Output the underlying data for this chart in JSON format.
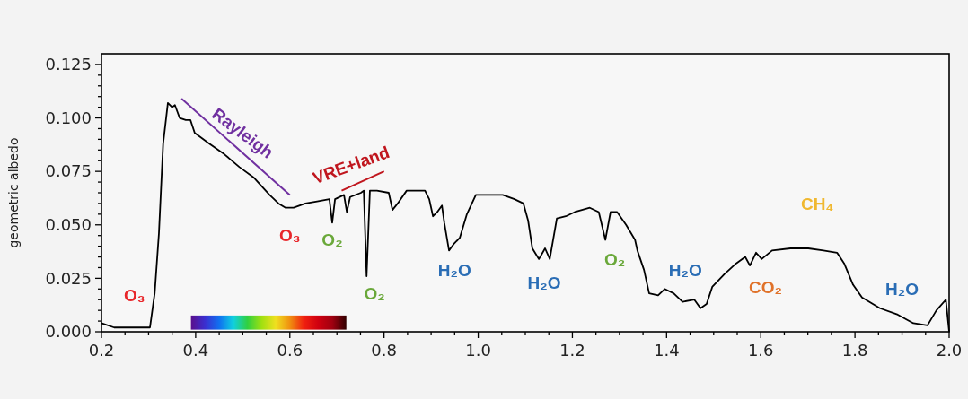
{
  "chart_data": {
    "type": "line",
    "ylabel": "geometric albedo",
    "xlim": [
      0.2,
      2.0
    ],
    "ylim": [
      0,
      0.13
    ],
    "xticks": [
      {
        "value": 0.2,
        "label": "0.2"
      },
      {
        "value": 0.25,
        "label": null
      },
      {
        "value": 0.3,
        "label": null
      },
      {
        "value": 0.35,
        "label": null
      },
      {
        "value": 0.4,
        "label": "0.4"
      },
      {
        "value": 0.45,
        "label": null
      },
      {
        "value": 0.5,
        "label": null
      },
      {
        "value": 0.55,
        "label": null
      },
      {
        "value": 0.6,
        "label": "0.6"
      },
      {
        "value": 0.65,
        "label": null
      },
      {
        "value": 0.7,
        "label": null
      },
      {
        "value": 0.75,
        "label": null
      },
      {
        "value": 0.8,
        "label": "0.8"
      },
      {
        "value": 0.85,
        "label": null
      },
      {
        "value": 0.9,
        "label": null
      },
      {
        "value": 0.95,
        "label": null
      },
      {
        "value": 1.0,
        "label": "1.0"
      },
      {
        "value": 1.05,
        "label": null
      },
      {
        "value": 1.1,
        "label": null
      },
      {
        "value": 1.15,
        "label": null
      },
      {
        "value": 1.2,
        "label": "1.2"
      },
      {
        "value": 1.25,
        "label": null
      },
      {
        "value": 1.3,
        "label": null
      },
      {
        "value": 1.35,
        "label": null
      },
      {
        "value": 1.4,
        "label": "1.4"
      },
      {
        "value": 1.45,
        "label": null
      },
      {
        "value": 1.5,
        "label": null
      },
      {
        "value": 1.55,
        "label": null
      },
      {
        "value": 1.6,
        "label": "1.6"
      },
      {
        "value": 1.65,
        "label": null
      },
      {
        "value": 1.7,
        "label": null
      },
      {
        "value": 1.75,
        "label": null
      },
      {
        "value": 1.8,
        "label": "1.8"
      },
      {
        "value": 1.85,
        "label": null
      },
      {
        "value": 1.9,
        "label": null
      },
      {
        "value": 1.95,
        "label": null
      },
      {
        "value": 2.0,
        "label": "2.0"
      }
    ],
    "yticks": [
      {
        "value": 0,
        "label": "0.000"
      },
      {
        "value": 0.005,
        "label": null
      },
      {
        "value": 0.01,
        "label": null
      },
      {
        "value": 0.015,
        "label": null
      },
      {
        "value": 0.02,
        "label": null
      },
      {
        "value": 0.025,
        "label": "0.025"
      },
      {
        "value": 0.03,
        "label": null
      },
      {
        "value": 0.035,
        "label": null
      },
      {
        "value": 0.04,
        "label": null
      },
      {
        "value": 0.045,
        "label": null
      },
      {
        "value": 0.05,
        "label": "0.050"
      },
      {
        "value": 0.055,
        "label": null
      },
      {
        "value": 0.06,
        "label": null
      },
      {
        "value": 0.065,
        "label": null
      },
      {
        "value": 0.07,
        "label": null
      },
      {
        "value": 0.075,
        "label": "0.075"
      },
      {
        "value": 0.08,
        "label": null
      },
      {
        "value": 0.085,
        "label": null
      },
      {
        "value": 0.09,
        "label": null
      },
      {
        "value": 0.095,
        "label": null
      },
      {
        "value": 0.1,
        "label": "0.100"
      },
      {
        "value": 0.105,
        "label": null
      },
      {
        "value": 0.11,
        "label": null
      },
      {
        "value": 0.115,
        "label": null
      },
      {
        "value": 0.12,
        "label": null
      },
      {
        "value": 0.125,
        "label": "0.125"
      }
    ],
    "grid": false,
    "marker": "none",
    "line_style": "solid",
    "bands": [
      {
        "axis": "x",
        "from": 0.39,
        "to": 0.72
      }
    ],
    "series": [
      {
        "color": "#000000",
        "x": [
          0.2,
          0.227,
          0.303,
          0.313,
          0.322,
          0.331,
          0.341,
          0.35,
          0.356,
          0.366,
          0.379,
          0.389,
          0.398,
          0.429,
          0.461,
          0.493,
          0.524,
          0.557,
          0.576,
          0.591,
          0.608,
          0.633,
          0.658,
          0.684,
          0.69,
          0.696,
          0.715,
          0.721,
          0.728,
          0.751,
          0.757,
          0.763,
          0.77,
          0.785,
          0.81,
          0.818,
          0.829,
          0.848,
          0.887,
          0.896,
          0.904,
          0.913,
          0.923,
          0.928,
          0.938,
          0.948,
          0.961,
          0.976,
          0.995,
          1.014,
          1.052,
          1.077,
          1.096,
          1.106,
          1.115,
          1.129,
          1.142,
          1.152,
          1.167,
          1.186,
          1.205,
          1.237,
          1.256,
          1.27,
          1.281,
          1.295,
          1.314,
          1.333,
          1.338,
          1.352,
          1.363,
          1.382,
          1.396,
          1.415,
          1.434,
          1.459,
          1.472,
          1.485,
          1.497,
          1.523,
          1.548,
          1.567,
          1.577,
          1.59,
          1.602,
          1.624,
          1.663,
          1.701,
          1.733,
          1.762,
          1.777,
          1.796,
          1.815,
          1.853,
          1.891,
          1.924,
          1.954,
          1.973,
          1.993,
          2.0
        ],
        "values": [
          0.004,
          0.002,
          0.002,
          0.018,
          0.046,
          0.088,
          0.107,
          0.105,
          0.106,
          0.1,
          0.099,
          0.099,
          0.093,
          0.088,
          0.083,
          0.077,
          0.072,
          0.064,
          0.06,
          0.058,
          0.058,
          0.06,
          0.061,
          0.062,
          0.051,
          0.062,
          0.064,
          0.056,
          0.063,
          0.065,
          0.066,
          0.026,
          0.066,
          0.066,
          0.065,
          0.057,
          0.06,
          0.066,
          0.066,
          0.062,
          0.054,
          0.056,
          0.059,
          0.051,
          0.038,
          0.041,
          0.044,
          0.055,
          0.064,
          0.064,
          0.064,
          0.062,
          0.06,
          0.052,
          0.039,
          0.034,
          0.039,
          0.034,
          0.053,
          0.054,
          0.056,
          0.058,
          0.056,
          0.043,
          0.056,
          0.056,
          0.05,
          0.043,
          0.038,
          0.029,
          0.018,
          0.017,
          0.02,
          0.018,
          0.014,
          0.015,
          0.011,
          0.013,
          0.021,
          0.027,
          0.032,
          0.035,
          0.031,
          0.037,
          0.034,
          0.038,
          0.039,
          0.039,
          0.038,
          0.037,
          0.032,
          0.022,
          0.016,
          0.011,
          0.008,
          0.004,
          0.003,
          0.01,
          0.015,
          0.0
        ]
      }
    ],
    "annotations": [
      "Rayleigh",
      "VRE+land",
      "O₃",
      "O₃",
      "O₂",
      "O₂",
      "H₂O",
      "H₂O",
      "O₂",
      "H₂O",
      "CO₂",
      "CH₄",
      "H₂O"
    ]
  }
}
